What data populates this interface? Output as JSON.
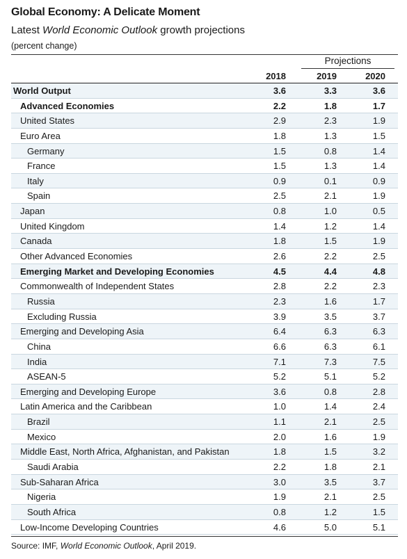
{
  "header": {
    "title": "Global Economy: A Delicate Moment",
    "subtitle_prefix": "Latest ",
    "subtitle_italic": "World Economic Outlook",
    "subtitle_suffix": " growth projections",
    "unit": "(percent change)",
    "projections_label": "Projections",
    "years": [
      "2018",
      "2019",
      "2020"
    ]
  },
  "rows": [
    {
      "label": "World Output",
      "level": 0,
      "bold": true,
      "values": [
        "3.6",
        "3.3",
        "3.6"
      ]
    },
    {
      "label": "Advanced Economies",
      "level": 1,
      "bold": true,
      "values": [
        "2.2",
        "1.8",
        "1.7"
      ]
    },
    {
      "label": "United States",
      "level": 1,
      "bold": false,
      "values": [
        "2.9",
        "2.3",
        "1.9"
      ]
    },
    {
      "label": "Euro Area",
      "level": 1,
      "bold": false,
      "values": [
        "1.8",
        "1.3",
        "1.5"
      ]
    },
    {
      "label": "Germany",
      "level": 2,
      "bold": false,
      "values": [
        "1.5",
        "0.8",
        "1.4"
      ]
    },
    {
      "label": "France",
      "level": 2,
      "bold": false,
      "values": [
        "1.5",
        "1.3",
        "1.4"
      ]
    },
    {
      "label": "Italy",
      "level": 2,
      "bold": false,
      "values": [
        "0.9",
        "0.1",
        "0.9"
      ]
    },
    {
      "label": "Spain",
      "level": 2,
      "bold": false,
      "values": [
        "2.5",
        "2.1",
        "1.9"
      ]
    },
    {
      "label": "Japan",
      "level": 1,
      "bold": false,
      "values": [
        "0.8",
        "1.0",
        "0.5"
      ]
    },
    {
      "label": "United Kingdom",
      "level": 1,
      "bold": false,
      "values": [
        "1.4",
        "1.2",
        "1.4"
      ]
    },
    {
      "label": "Canada",
      "level": 1,
      "bold": false,
      "values": [
        "1.8",
        "1.5",
        "1.9"
      ]
    },
    {
      "label": "Other Advanced Economies",
      "level": 1,
      "bold": false,
      "values": [
        "2.6",
        "2.2",
        "2.5"
      ]
    },
    {
      "label": "Emerging Market and Developing Economies",
      "level": 1,
      "bold": true,
      "values": [
        "4.5",
        "4.4",
        "4.8"
      ]
    },
    {
      "label": "Commonwealth of Independent States",
      "level": 1,
      "bold": false,
      "values": [
        "2.8",
        "2.2",
        "2.3"
      ]
    },
    {
      "label": "Russia",
      "level": 2,
      "bold": false,
      "values": [
        "2.3",
        "1.6",
        "1.7"
      ]
    },
    {
      "label": "Excluding Russia",
      "level": 2,
      "bold": false,
      "values": [
        "3.9",
        "3.5",
        "3.7"
      ]
    },
    {
      "label": "Emerging and Developing Asia",
      "level": 1,
      "bold": false,
      "values": [
        "6.4",
        "6.3",
        "6.3"
      ]
    },
    {
      "label": "China",
      "level": 2,
      "bold": false,
      "values": [
        "6.6",
        "6.3",
        "6.1"
      ]
    },
    {
      "label": "India",
      "level": 2,
      "bold": false,
      "values": [
        "7.1",
        "7.3",
        "7.5"
      ]
    },
    {
      "label": "ASEAN-5",
      "level": 2,
      "bold": false,
      "values": [
        "5.2",
        "5.1",
        "5.2"
      ]
    },
    {
      "label": "Emerging and Developing Europe",
      "level": 1,
      "bold": false,
      "values": [
        "3.6",
        "0.8",
        "2.8"
      ]
    },
    {
      "label": "Latin America and the Caribbean",
      "level": 1,
      "bold": false,
      "values": [
        "1.0",
        "1.4",
        "2.4"
      ]
    },
    {
      "label": "Brazil",
      "level": 2,
      "bold": false,
      "values": [
        "1.1",
        "2.1",
        "2.5"
      ]
    },
    {
      "label": "Mexico",
      "level": 2,
      "bold": false,
      "values": [
        "2.0",
        "1.6",
        "1.9"
      ]
    },
    {
      "label": "Middle East, North Africa, Afghanistan, and Pakistan",
      "level": 1,
      "bold": false,
      "values": [
        "1.8",
        "1.5",
        "3.2"
      ]
    },
    {
      "label": "Saudi Arabia",
      "level": 2,
      "bold": false,
      "values": [
        "2.2",
        "1.8",
        "2.1"
      ]
    },
    {
      "label": "Sub-Saharan Africa",
      "level": 1,
      "bold": false,
      "values": [
        "3.0",
        "3.5",
        "3.7"
      ]
    },
    {
      "label": "Nigeria",
      "level": 2,
      "bold": false,
      "values": [
        "1.9",
        "2.1",
        "2.5"
      ]
    },
    {
      "label": "South Africa",
      "level": 2,
      "bold": false,
      "values": [
        "0.8",
        "1.2",
        "1.5"
      ]
    },
    {
      "label": "Low-Income Developing Countries",
      "level": 1,
      "bold": false,
      "values": [
        "4.6",
        "5.0",
        "5.1"
      ]
    }
  ],
  "footer": {
    "source_prefix": "Source: IMF, ",
    "source_italic": "World Economic Outlook",
    "source_suffix": ", April 2019."
  },
  "colors": {
    "row_shade": "#eef4f8",
    "row_separator": "#c9d6df"
  }
}
